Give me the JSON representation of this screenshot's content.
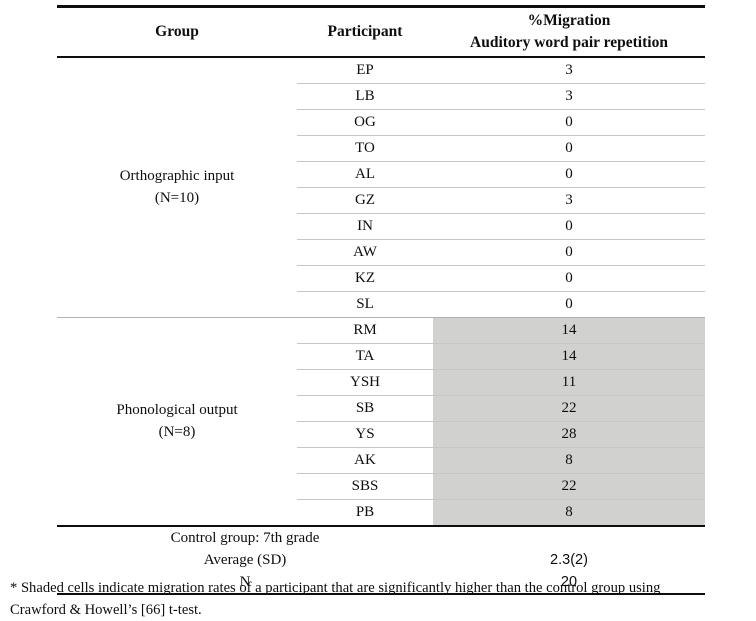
{
  "colors": {
    "shaded_cell": "#d1d1cf",
    "thick_rule": "#0e0e0e",
    "thin_rule": "#c6c6c6",
    "background": "#ffffff"
  },
  "table": {
    "headers": {
      "group": "Group",
      "participant": "Participant",
      "value_line1": "%Migration",
      "value_line2": "Auditory word pair repetition"
    },
    "groups": [
      {
        "label_line1": "Orthographic input",
        "label_line2": "(N=10)",
        "shaded": false,
        "rows": [
          {
            "participant": "EP",
            "value": "3"
          },
          {
            "participant": "LB",
            "value": "3"
          },
          {
            "participant": "OG",
            "value": "0"
          },
          {
            "participant": "TO",
            "value": "0"
          },
          {
            "participant": "AL",
            "value": "0"
          },
          {
            "participant": "GZ",
            "value": "3"
          },
          {
            "participant": "IN",
            "value": "0"
          },
          {
            "participant": "AW",
            "value": "0"
          },
          {
            "participant": "KZ",
            "value": "0"
          },
          {
            "participant": "SL",
            "value": "0"
          }
        ]
      },
      {
        "label_line1": "Phonological output",
        "label_line2": "(N=8)",
        "shaded": true,
        "rows": [
          {
            "participant": "RM",
            "value": "14"
          },
          {
            "participant": "TA",
            "value": "14"
          },
          {
            "participant": "YSH",
            "value": "11"
          },
          {
            "participant": "SB",
            "value": "22"
          },
          {
            "participant": "YS",
            "value": "28"
          },
          {
            "participant": "AK",
            "value": "8"
          },
          {
            "participant": "SBS",
            "value": "22"
          },
          {
            "participant": "PB",
            "value": "8"
          }
        ]
      }
    ],
    "footer": {
      "rows": [
        {
          "label": "Control group: 7th grade",
          "value": ""
        },
        {
          "label": "Average (SD)",
          "value": "2.3(2)"
        },
        {
          "label": "N",
          "value": "20"
        }
      ]
    }
  },
  "footnote": {
    "line1": "* Shaded cells indicate migration rates of a participant that are significantly higher than the control group using",
    "line2": "Crawford & Howell’s [66] t-test."
  }
}
